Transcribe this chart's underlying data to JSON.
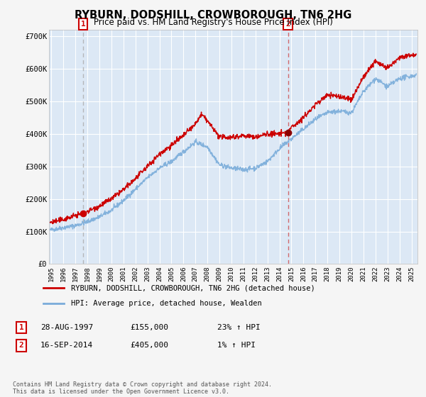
{
  "title": "RYBURN, DODSHILL, CROWBOROUGH, TN6 2HG",
  "subtitle": "Price paid vs. HM Land Registry's House Price Index (HPI)",
  "legend_line1": "RYBURN, DODSHILL, CROWBOROUGH, TN6 2HG (detached house)",
  "legend_line2": "HPI: Average price, detached house, Wealden",
  "annotation1_label": "1",
  "annotation1_date": "28-AUG-1997",
  "annotation1_price": "£155,000",
  "annotation1_hpi": "23% ↑ HPI",
  "annotation1_year": 1997.65,
  "annotation1_value": 155000,
  "annotation2_label": "2",
  "annotation2_date": "16-SEP-2014",
  "annotation2_price": "£405,000",
  "annotation2_hpi": "1% ↑ HPI",
  "annotation2_year": 2014.71,
  "annotation2_value": 405000,
  "footer": "Contains HM Land Registry data © Crown copyright and database right 2024.\nThis data is licensed under the Open Government Licence v3.0.",
  "fig_bg_color": "#f5f5f5",
  "plot_bg_color": "#dce8f5",
  "red_line_color": "#cc0000",
  "blue_line_color": "#7aacda",
  "grid_color": "#ffffff",
  "ann1_vline_color": "#aaaaaa",
  "ann2_vline_color": "#cc3333",
  "ylim": [
    0,
    720000
  ],
  "xlim_start": 1994.8,
  "xlim_end": 2025.5,
  "yticks": [
    0,
    100000,
    200000,
    300000,
    400000,
    500000,
    600000,
    700000
  ],
  "ytick_labels": [
    "£0",
    "£100K",
    "£200K",
    "£300K",
    "£400K",
    "£500K",
    "£600K",
    "£700K"
  ],
  "xticks": [
    1995,
    1996,
    1997,
    1998,
    1999,
    2000,
    2001,
    2002,
    2003,
    2004,
    2005,
    2006,
    2007,
    2008,
    2009,
    2010,
    2011,
    2012,
    2013,
    2014,
    2015,
    2016,
    2017,
    2018,
    2019,
    2020,
    2021,
    2022,
    2023,
    2024,
    2025
  ]
}
